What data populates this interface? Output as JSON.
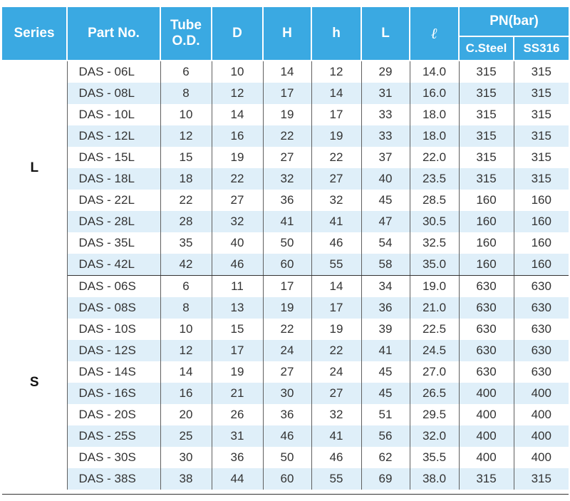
{
  "header": {
    "series": "Series",
    "part_no": "Part No.",
    "tube_od_line1": "Tube",
    "tube_od_line2": "O.D.",
    "d": "D",
    "H": "H",
    "h": "h",
    "L": "L",
    "ell": "ℓ",
    "pn": "PN(bar)",
    "c_steel": "C.Steel",
    "ss316": "SS316"
  },
  "groups": [
    {
      "series": "L",
      "rows": [
        {
          "part": "DAS - 06L",
          "od": "6",
          "d": "10",
          "H": "14",
          "h": "12",
          "L": "29",
          "ell": "14.0",
          "cs": "315",
          "ss": "315"
        },
        {
          "part": "DAS - 08L",
          "od": "8",
          "d": "12",
          "H": "17",
          "h": "14",
          "L": "31",
          "ell": "16.0",
          "cs": "315",
          "ss": "315"
        },
        {
          "part": "DAS - 10L",
          "od": "10",
          "d": "14",
          "H": "19",
          "h": "17",
          "L": "33",
          "ell": "18.0",
          "cs": "315",
          "ss": "315"
        },
        {
          "part": "DAS - 12L",
          "od": "12",
          "d": "16",
          "H": "22",
          "h": "19",
          "L": "33",
          "ell": "18.0",
          "cs": "315",
          "ss": "315"
        },
        {
          "part": "DAS - 15L",
          "od": "15",
          "d": "19",
          "H": "27",
          "h": "22",
          "L": "37",
          "ell": "22.0",
          "cs": "315",
          "ss": "315"
        },
        {
          "part": "DAS - 18L",
          "od": "18",
          "d": "22",
          "H": "32",
          "h": "27",
          "L": "40",
          "ell": "23.5",
          "cs": "315",
          "ss": "315"
        },
        {
          "part": "DAS - 22L",
          "od": "22",
          "d": "27",
          "H": "36",
          "h": "32",
          "L": "45",
          "ell": "28.5",
          "cs": "160",
          "ss": "160"
        },
        {
          "part": "DAS - 28L",
          "od": "28",
          "d": "32",
          "H": "41",
          "h": "41",
          "L": "47",
          "ell": "30.5",
          "cs": "160",
          "ss": "160"
        },
        {
          "part": "DAS - 35L",
          "od": "35",
          "d": "40",
          "H": "50",
          "h": "46",
          "L": "54",
          "ell": "32.5",
          "cs": "160",
          "ss": "160"
        },
        {
          "part": "DAS - 42L",
          "od": "42",
          "d": "46",
          "H": "60",
          "h": "55",
          "L": "58",
          "ell": "35.0",
          "cs": "160",
          "ss": "160"
        }
      ]
    },
    {
      "series": "S",
      "rows": [
        {
          "part": "DAS - 06S",
          "od": "6",
          "d": "11",
          "H": "17",
          "h": "14",
          "L": "34",
          "ell": "19.0",
          "cs": "630",
          "ss": "630"
        },
        {
          "part": "DAS - 08S",
          "od": "8",
          "d": "13",
          "H": "19",
          "h": "17",
          "L": "36",
          "ell": "21.0",
          "cs": "630",
          "ss": "630"
        },
        {
          "part": "DAS - 10S",
          "od": "10",
          "d": "15",
          "H": "22",
          "h": "19",
          "L": "39",
          "ell": "22.5",
          "cs": "630",
          "ss": "630"
        },
        {
          "part": "DAS - 12S",
          "od": "12",
          "d": "17",
          "H": "24",
          "h": "22",
          "L": "41",
          "ell": "24.5",
          "cs": "630",
          "ss": "630"
        },
        {
          "part": "DAS - 14S",
          "od": "14",
          "d": "19",
          "H": "27",
          "h": "24",
          "L": "45",
          "ell": "27.0",
          "cs": "630",
          "ss": "630"
        },
        {
          "part": "DAS - 16S",
          "od": "16",
          "d": "21",
          "H": "30",
          "h": "27",
          "L": "45",
          "ell": "26.5",
          "cs": "400",
          "ss": "400"
        },
        {
          "part": "DAS - 20S",
          "od": "20",
          "d": "26",
          "H": "36",
          "h": "32",
          "L": "51",
          "ell": "29.5",
          "cs": "400",
          "ss": "400"
        },
        {
          "part": "DAS - 25S",
          "od": "25",
          "d": "31",
          "H": "46",
          "h": "41",
          "L": "56",
          "ell": "32.0",
          "cs": "400",
          "ss": "400"
        },
        {
          "part": "DAS - 30S",
          "od": "30",
          "d": "36",
          "H": "50",
          "h": "46",
          "L": "62",
          "ell": "35.5",
          "cs": "400",
          "ss": "400"
        },
        {
          "part": "DAS - 38S",
          "od": "38",
          "d": "44",
          "H": "60",
          "h": "55",
          "L": "69",
          "ell": "38.0",
          "cs": "315",
          "ss": "315"
        }
      ]
    }
  ]
}
